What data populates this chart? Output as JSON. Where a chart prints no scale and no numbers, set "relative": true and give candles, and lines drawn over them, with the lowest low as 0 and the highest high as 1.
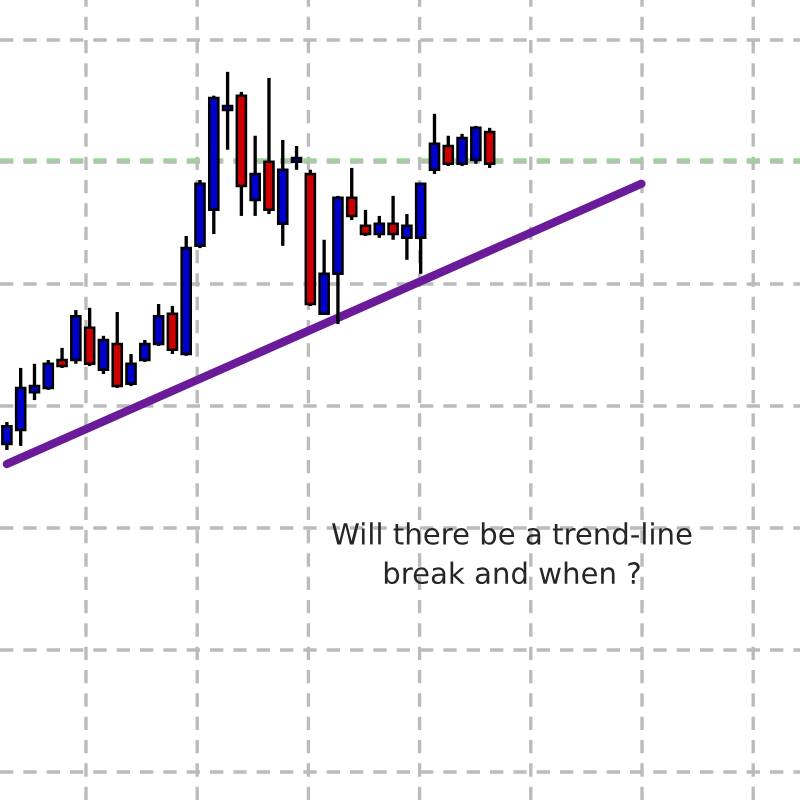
{
  "chart_data": {
    "type": "candlestick",
    "relative": true,
    "grid": true,
    "categories": [
      null,
      null,
      null,
      null,
      null,
      null,
      null,
      null,
      null,
      null,
      null,
      null,
      null,
      null,
      null,
      null,
      null,
      null,
      null,
      null,
      null,
      null,
      null,
      null,
      null,
      null,
      null,
      null,
      null,
      null,
      null,
      null,
      null,
      null,
      null,
      null,
      null,
      null,
      null,
      null,
      null,
      null,
      null,
      null,
      null,
      null,
      null,
      null,
      null,
      null,
      null,
      null,
      null,
      null,
      null,
      null,
      null,
      null
    ],
    "ohlc": [
      [
        0.016,
        0.074,
        0,
        0.063
      ],
      [
        0.053,
        0.217,
        0.011,
        0.164
      ],
      [
        0.153,
        0.228,
        0.132,
        0.169
      ],
      [
        0.164,
        0.238,
        0.159,
        0.228
      ],
      [
        0.238,
        0.27,
        0.217,
        0.222
      ],
      [
        0.238,
        0.37,
        0.228,
        0.354
      ],
      [
        0.323,
        0.376,
        0.222,
        0.228
      ],
      [
        0.212,
        0.302,
        0.201,
        0.291
      ],
      [
        0.28,
        0.365,
        0.164,
        0.169
      ],
      [
        0.175,
        0.254,
        0.169,
        0.228
      ],
      [
        0.238,
        0.291,
        0.233,
        0.28
      ],
      [
        0.28,
        0.386,
        0.275,
        0.354
      ],
      [
        0.36,
        0.381,
        0.254,
        0.265
      ],
      [
        0.254,
        0.566,
        0.249,
        0.534
      ],
      [
        0.54,
        0.714,
        0.534,
        0.704
      ],
      [
        0.635,
        0.937,
        0.571,
        0.931
      ],
      [
        0.899,
        1,
        0.794,
        0.91
      ],
      [
        0.937,
        0.947,
        0.619,
        0.698
      ],
      [
        0.661,
        0.831,
        0.619,
        0.73
      ],
      [
        0.762,
        0.984,
        0.624,
        0.635
      ],
      [
        0.598,
        0.82,
        0.54,
        0.741
      ],
      [
        0.762,
        0.804,
        0.741,
        0.772
      ],
      [
        0.73,
        0.741,
        0.381,
        0.386
      ],
      [
        0.36,
        0.556,
        0.36,
        0.466
      ],
      [
        0.466,
        0.672,
        0.333,
        0.667
      ],
      [
        0.667,
        0.746,
        0.608,
        0.619
      ],
      [
        0.593,
        0.635,
        0.566,
        0.571
      ],
      [
        0.571,
        0.619,
        0.561,
        0.598
      ],
      [
        0.598,
        0.672,
        0.556,
        0.571
      ],
      [
        0.561,
        0.624,
        0.503,
        0.593
      ],
      [
        0.561,
        0.704,
        0.466,
        0.704
      ],
      [
        0.741,
        0.889,
        0.73,
        0.81
      ],
      [
        0.804,
        0.831,
        0.751,
        0.757
      ],
      [
        0.757,
        0.836,
        0.751,
        0.825
      ],
      [
        0.767,
        0.857,
        0.757,
        0.852
      ],
      [
        0.841,
        0.852,
        0.746,
        0.757
      ],
      null,
      null,
      null,
      null,
      null,
      null,
      null,
      null,
      null,
      null,
      null,
      null,
      null,
      null,
      null,
      null,
      null,
      null,
      null,
      null,
      null,
      null
    ],
    "colors": [
      "#0000cc",
      "#0000cc",
      "#0000cc",
      "#0000cc",
      "#cc0000",
      "#0000cc",
      "#cc0000",
      "#0000cc",
      "#cc0000",
      "#0000cc",
      "#0000cc",
      "#0000cc",
      "#cc0000",
      "#0000cc",
      "#0000cc",
      "#0000cc",
      "#0000cc",
      "#cc0000",
      "#0000cc",
      "#cc0000",
      "#0000cc",
      "#0000cc",
      "#cc0000",
      "#0000cc",
      "#0000cc",
      "#cc0000",
      "#cc0000",
      "#0000cc",
      "#cc0000",
      "#0000cc",
      "#0000cc",
      "#0000cc",
      "#cc0000",
      "#0000cc",
      "#0000cc",
      "#cc0000",
      null,
      null,
      null,
      null,
      null,
      null,
      null,
      null,
      null,
      null,
      null,
      null,
      null,
      null,
      null,
      null,
      null,
      null,
      null,
      null,
      null,
      null
    ],
    "series": [
      {
        "type": "line",
        "color": "#6a1b9a",
        "values": [
          -0.037,
          null,
          null,
          null,
          null,
          null,
          null,
          null,
          null,
          null,
          null,
          null,
          null,
          null,
          null,
          null,
          null,
          null,
          null,
          null,
          null,
          null,
          null,
          null,
          null,
          null,
          null,
          null,
          null,
          null,
          null,
          null,
          null,
          null,
          null,
          null,
          null,
          null,
          null,
          null,
          null,
          null,
          null,
          null,
          null,
          null,
          0.704,
          null,
          null,
          null,
          null,
          null,
          null,
          null,
          null,
          null,
          null,
          null
        ]
      }
    ],
    "ref_lines": [
      {
        "axis": "y",
        "value": 0.767,
        "color": "#9fd39a",
        "line_style": "dashed"
      }
    ],
    "annotations": [
      "Will there be a trend-line\nbreak and when ?"
    ]
  }
}
